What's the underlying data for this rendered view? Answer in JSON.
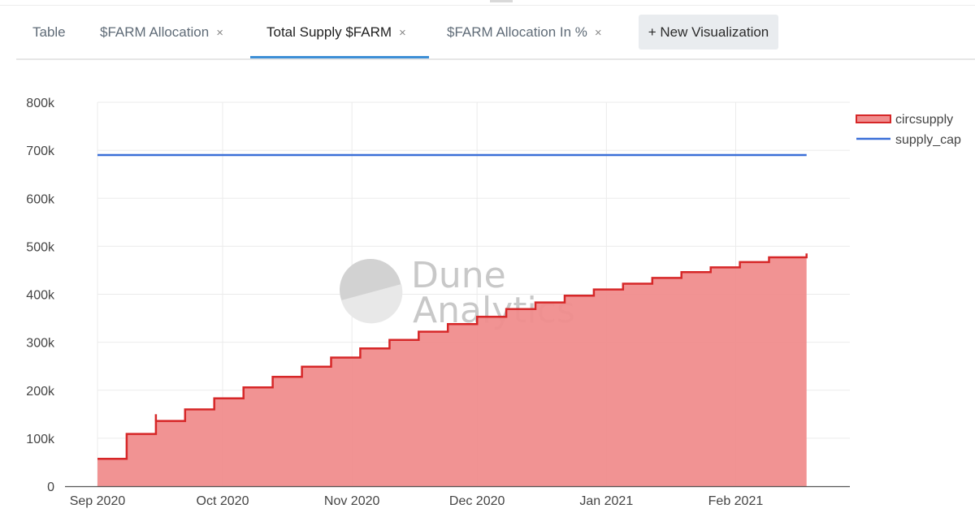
{
  "tabs": [
    {
      "label": "Table",
      "closable": false
    },
    {
      "label": "$FARM Allocation",
      "closable": true
    },
    {
      "label": "Total Supply $FARM",
      "closable": true,
      "active": true
    },
    {
      "label": "$FARM Allocation In %",
      "closable": true
    }
  ],
  "close_glyph": "×",
  "new_visualization_label": "+ New Visualization",
  "watermark": {
    "line1": "Dune",
    "line2": "Analytics"
  },
  "colors": {
    "circsupply_line": "#d62728",
    "circsupply_fill": "#f08d8d",
    "supply_cap": "#3a6fd8"
  },
  "chart_data": {
    "type": "area",
    "title": "",
    "xlabel": "",
    "ylabel": "",
    "x_ticks": [
      "Sep 2020",
      "Oct 2020",
      "Nov 2020",
      "Dec 2020",
      "Jan 2021",
      "Feb 2021"
    ],
    "x_tick_dates": [
      "2020-09-01",
      "2020-10-01",
      "2020-11-01",
      "2020-12-01",
      "2021-01-01",
      "2021-02-01"
    ],
    "y_ticks": [
      "0",
      "100k",
      "200k",
      "300k",
      "400k",
      "500k",
      "600k",
      "700k",
      "800k"
    ],
    "ylim": [
      0,
      800000
    ],
    "xlim": [
      "2020-09-01",
      "2021-02-20"
    ],
    "grid": true,
    "legend_position": "top-right",
    "series": [
      {
        "name": "circsupply",
        "type": "area-step",
        "points": [
          [
            "2020-09-01",
            57000
          ],
          [
            "2020-09-08",
            109000
          ],
          [
            "2020-09-15",
            136000
          ],
          [
            "2020-09-22",
            160000
          ],
          [
            "2020-09-29",
            183000
          ],
          [
            "2020-10-06",
            206000
          ],
          [
            "2020-10-13",
            228000
          ],
          [
            "2020-10-20",
            249000
          ],
          [
            "2020-10-27",
            268000
          ],
          [
            "2020-11-03",
            287000
          ],
          [
            "2020-11-10",
            305000
          ],
          [
            "2020-11-17",
            322000
          ],
          [
            "2020-11-24",
            338000
          ],
          [
            "2020-12-01",
            353000
          ],
          [
            "2020-12-08",
            369000
          ],
          [
            "2020-12-15",
            383000
          ],
          [
            "2020-12-22",
            397000
          ],
          [
            "2020-12-29",
            410000
          ],
          [
            "2021-01-05",
            422000
          ],
          [
            "2021-01-12",
            434000
          ],
          [
            "2021-01-19",
            446000
          ],
          [
            "2021-01-26",
            456000
          ],
          [
            "2021-02-02",
            467000
          ],
          [
            "2021-02-09",
            477000
          ],
          [
            "2021-02-16",
            477000
          ],
          [
            "2021-02-18",
            485000
          ]
        ],
        "spikes": [
          [
            "2020-09-15",
            150000
          ]
        ]
      },
      {
        "name": "supply_cap",
        "type": "line",
        "points": [
          [
            "2020-09-01",
            690000
          ],
          [
            "2021-02-18",
            690000
          ]
        ]
      }
    ]
  }
}
